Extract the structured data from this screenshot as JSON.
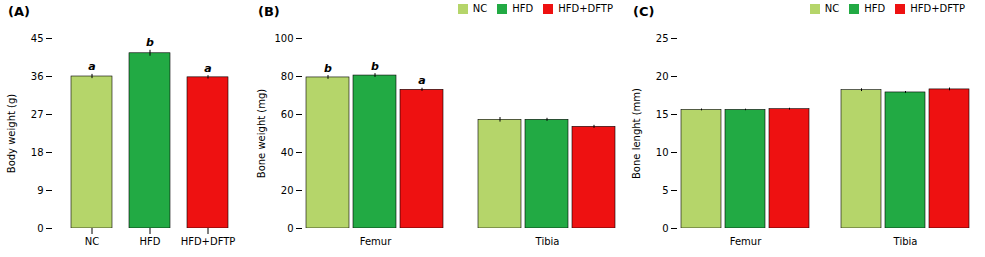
{
  "chart_data": [
    {
      "type": "bar",
      "title": "(A)",
      "ylabel": "Body weight (g)",
      "categories": [
        "NC",
        "HFD",
        "HFD+DFTP"
      ],
      "values": [
        36.0,
        41.5,
        35.8
      ],
      "errors": [
        0.5,
        0.7,
        0.4
      ],
      "letters": [
        "a",
        "b",
        "a"
      ],
      "colors": [
        "#b5d56a",
        "#22aa44",
        "#ee1111"
      ],
      "ylim": [
        0,
        45
      ],
      "yticks": [
        0,
        9,
        18,
        27,
        36,
        45
      ],
      "grid": false
    },
    {
      "type": "bar",
      "title": "(B)",
      "ylabel": "Bone weight (mg)",
      "categories": [
        "Femur",
        "Tibia"
      ],
      "series": [
        {
          "name": "NC",
          "color": "#b5d56a",
          "values": [
            79.5,
            57.2
          ],
          "errors": [
            1.0,
            1.2
          ],
          "letters": [
            "b",
            null
          ]
        },
        {
          "name": "HFD",
          "color": "#22aa44",
          "values": [
            80.5,
            57.2
          ],
          "errors": [
            1.0,
            0.8
          ],
          "letters": [
            "b",
            null
          ]
        },
        {
          "name": "HFD+DFTP",
          "color": "#ee1111",
          "values": [
            73.0,
            53.5
          ],
          "errors": [
            0.8,
            0.8
          ],
          "letters": [
            "a",
            null
          ]
        }
      ],
      "ylim": [
        0,
        100
      ],
      "yticks": [
        0,
        20,
        40,
        60,
        80,
        100
      ],
      "legend": "upper right",
      "grid": false
    },
    {
      "type": "bar",
      "title": "(C)",
      "ylabel": "Bone lenght (mm)",
      "categories": [
        "Femur",
        "Tibia"
      ],
      "series": [
        {
          "name": "NC",
          "color": "#b5d56a",
          "values": [
            15.6,
            18.2
          ],
          "errors": [
            0.12,
            0.18
          ]
        },
        {
          "name": "HFD",
          "color": "#22aa44",
          "values": [
            15.6,
            17.9
          ],
          "errors": [
            0.1,
            0.12
          ]
        },
        {
          "name": "HFD+DFTP",
          "color": "#ee1111",
          "values": [
            15.7,
            18.3
          ],
          "errors": [
            0.12,
            0.18
          ]
        }
      ],
      "ylim": [
        0,
        25
      ],
      "yticks": [
        0,
        5,
        10,
        15,
        20,
        25
      ],
      "legend": "upper right",
      "grid": false
    }
  ]
}
